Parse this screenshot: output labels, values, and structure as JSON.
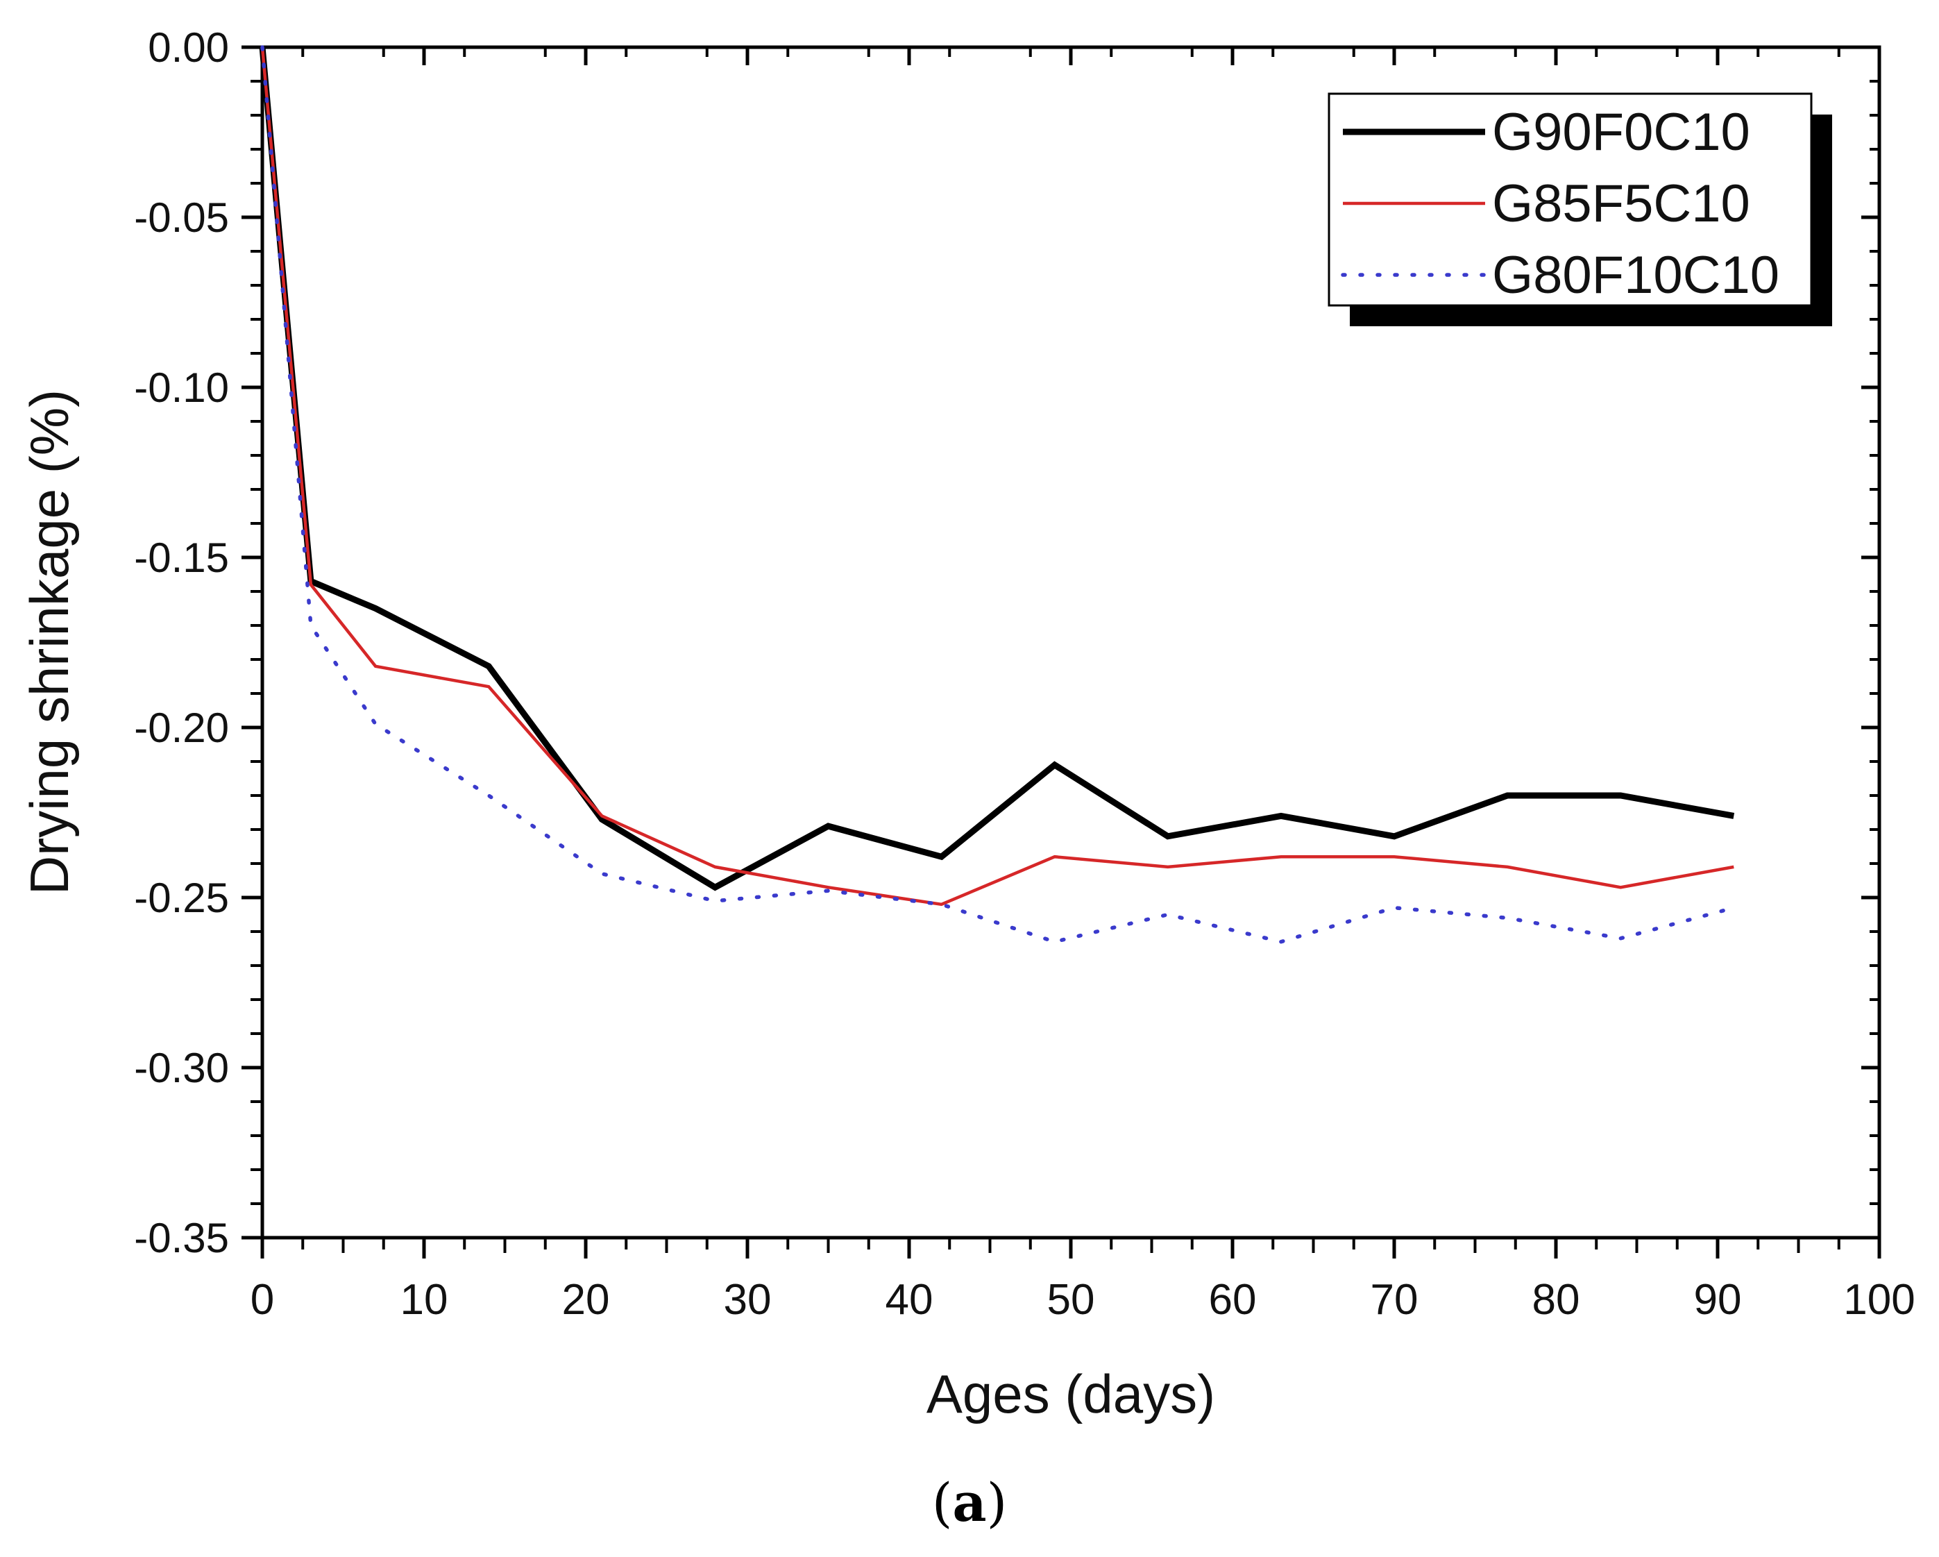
{
  "chart_data": {
    "type": "line",
    "title": "",
    "xlabel": "Ages (days)",
    "ylabel": "Drying shrinkage (%)",
    "xlim": [
      0,
      100
    ],
    "ylim": [
      -0.35,
      0.0
    ],
    "x_ticks": [
      "0",
      "10",
      "20",
      "30",
      "40",
      "50",
      "60",
      "70",
      "80",
      "90",
      "100"
    ],
    "y_ticks": [
      "0.00",
      "-0.05",
      "-0.10",
      "-0.15",
      "-0.20",
      "-0.25",
      "-0.30",
      "-0.35"
    ],
    "grid": false,
    "legend_position": "top-right",
    "series": [
      {
        "name": "G90F0C10",
        "color": "#000000",
        "style": "solid-thick",
        "x": [
          0,
          3,
          7,
          14,
          21,
          28,
          35,
          42,
          49,
          56,
          63,
          70,
          77,
          84,
          91
        ],
        "y": [
          0.0,
          -0.157,
          -0.165,
          -0.182,
          -0.227,
          -0.247,
          -0.229,
          -0.238,
          -0.211,
          -0.232,
          -0.226,
          -0.232,
          -0.22,
          -0.22,
          -0.226
        ]
      },
      {
        "name": "G85F5C10",
        "color": "#d62728",
        "style": "solid",
        "x": [
          0,
          3,
          7,
          14,
          21,
          28,
          35,
          42,
          49,
          56,
          63,
          70,
          77,
          84,
          91
        ],
        "y": [
          0.0,
          -0.158,
          -0.182,
          -0.188,
          -0.226,
          -0.241,
          -0.247,
          -0.252,
          -0.238,
          -0.241,
          -0.238,
          -0.238,
          -0.241,
          -0.247,
          -0.241
        ]
      },
      {
        "name": "G80F10C10",
        "color": "#3a3acc",
        "style": "dotted",
        "x": [
          0,
          3,
          7,
          14,
          21,
          28,
          35,
          42,
          49,
          56,
          63,
          70,
          77,
          84,
          91
        ],
        "y": [
          0.0,
          -0.17,
          -0.199,
          -0.22,
          -0.243,
          -0.251,
          -0.248,
          -0.252,
          -0.263,
          -0.255,
          -0.263,
          -0.253,
          -0.256,
          -0.262,
          -0.253
        ]
      }
    ]
  },
  "caption": {
    "open": "(",
    "label": "a",
    "close": ")"
  }
}
